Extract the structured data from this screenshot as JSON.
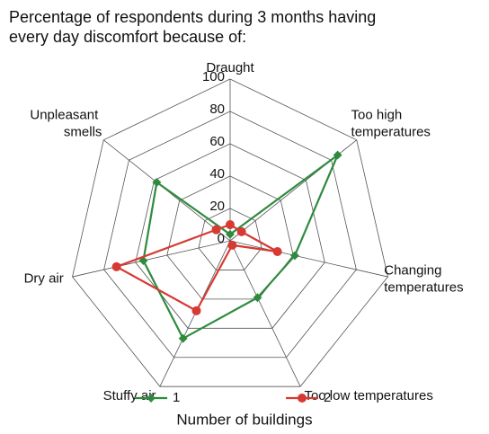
{
  "chart_data": {
    "type": "radar",
    "title": "Percentage of respondents during 3 months having every day discomfort because of:",
    "categories": [
      "Draught",
      "Too high temperatures",
      "Changing temperatures",
      "Too low temperatures",
      "Stuffy air",
      "Dry air",
      "Unpleasant smells"
    ],
    "series": [
      {
        "name": "1",
        "color": "#2e8b3e",
        "values": [
          4,
          85,
          41,
          39,
          67,
          55,
          58
        ]
      },
      {
        "name": "2",
        "color": "#d63a32",
        "values": [
          10,
          9,
          30,
          3,
          48,
          72,
          11
        ]
      }
    ],
    "ylim": [
      0,
      100
    ],
    "yticks": [
      0,
      20,
      40,
      60,
      80,
      100
    ],
    "grid": true,
    "legend_title": "Number of buildings",
    "legend": "bottom"
  }
}
